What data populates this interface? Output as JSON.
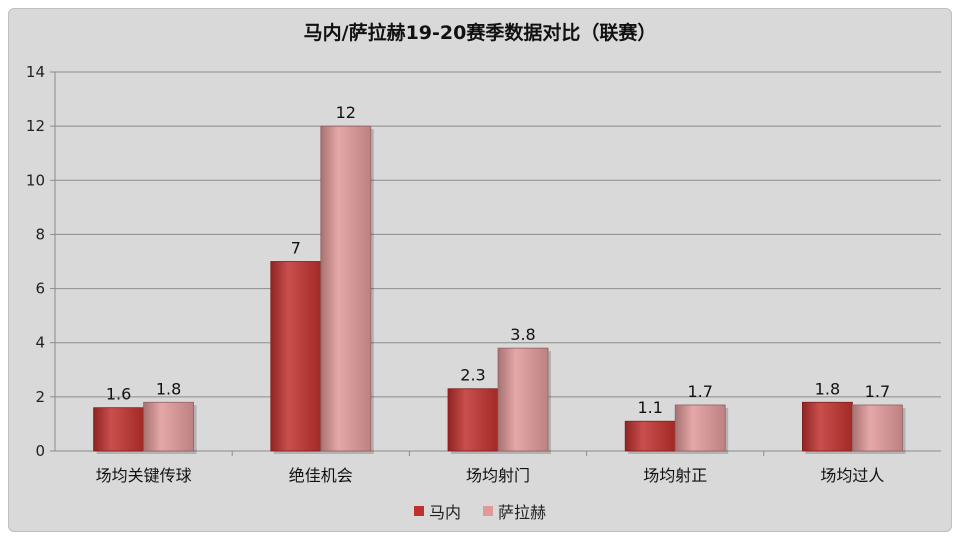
{
  "chart_data": {
    "type": "bar",
    "title": "马内/萨拉赫19-20赛季数据对比（联赛）",
    "categories": [
      "场均关键传球",
      "绝佳机会",
      "场均射门",
      "场均射正",
      "场均过人"
    ],
    "series": [
      {
        "name": "马内",
        "values": [
          1.6,
          7,
          2.3,
          1.1,
          1.8
        ],
        "color": "#c0302e",
        "label_values": [
          "1.6",
          "7",
          "2.3",
          "1.1",
          "1.8"
        ]
      },
      {
        "name": "萨拉赫",
        "values": [
          1.8,
          12,
          3.8,
          1.7,
          1.7
        ],
        "color": "#e09898",
        "label_values": [
          "1.8",
          "12",
          "3.8",
          "1.7",
          "1.7"
        ]
      }
    ],
    "ylim": [
      0,
      14
    ],
    "yticks": [
      0,
      2,
      4,
      6,
      8,
      10,
      12,
      14
    ],
    "grid": true,
    "legend_position": "bottom"
  }
}
